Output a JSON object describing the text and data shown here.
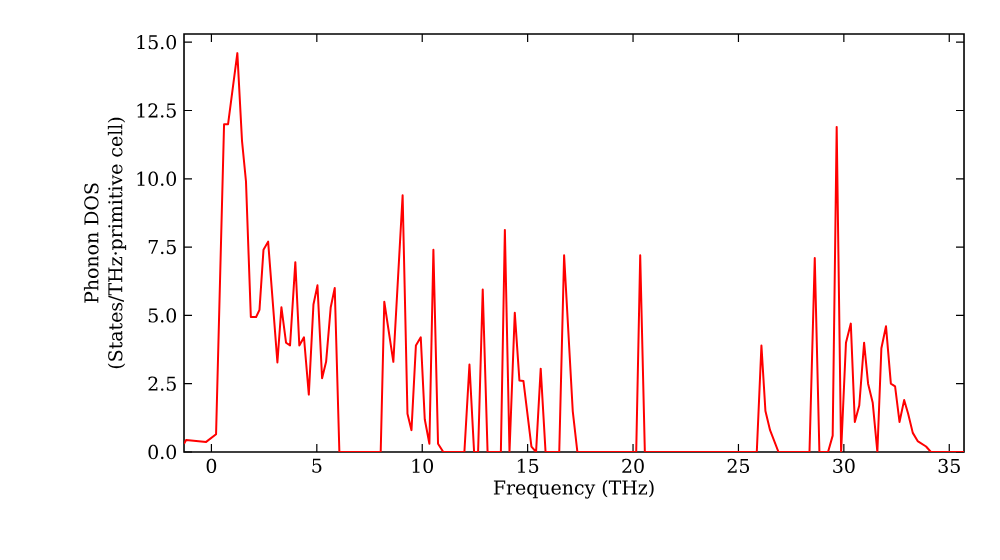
{
  "chart_data": {
    "type": "line",
    "xlabel": "Frequency (THz)",
    "ylabel": "Phonon DOS\n(States/THz·primitive cell)",
    "xlim": [
      -1.3,
      35.7
    ],
    "ylim": [
      0,
      15.3
    ],
    "xticks": [
      0,
      5,
      10,
      15,
      20,
      25,
      30,
      35
    ],
    "yticks": [
      {
        "value": 0,
        "label": "0.0"
      },
      {
        "value": 2.5,
        "label": "2.5"
      },
      {
        "value": 5,
        "label": "5.0"
      },
      {
        "value": 7.5,
        "label": "7.5"
      },
      {
        "value": 10,
        "label": "10.0"
      },
      {
        "value": 12.5,
        "label": "12.5"
      },
      {
        "value": 15,
        "label": "15.0"
      }
    ],
    "grid": false,
    "marker": "none",
    "line_style": "solid",
    "series": [
      {
        "color": "#ff0000",
        "x": [
          -1.3,
          -1.2,
          -0.25,
          0.22,
          0.6,
          0.79,
          1.23,
          1.45,
          1.64,
          1.87,
          2.12,
          2.28,
          2.47,
          2.69,
          3.13,
          3.32,
          3.54,
          3.73,
          3.98,
          4.17,
          4.39,
          4.62,
          4.84,
          5.03,
          5.25,
          5.44,
          5.66,
          5.85,
          6.07,
          8.03,
          8.2,
          8.63,
          9.07,
          9.3,
          9.49,
          9.7,
          9.93,
          10.12,
          10.34,
          10.53,
          10.75,
          11.0,
          12.0,
          12.24,
          12.46,
          12.65,
          12.87,
          13.1,
          13.73,
          13.92,
          14.14,
          14.39,
          14.61,
          14.8,
          15.18,
          15.4,
          15.62,
          15.85,
          16.5,
          16.73,
          17.14,
          17.36,
          20.15,
          20.34,
          20.56,
          25.87,
          26.09,
          26.28,
          26.5,
          26.9,
          28.37,
          28.62,
          28.84,
          29.25,
          29.47,
          29.66,
          29.87,
          30.1,
          30.33,
          30.52,
          30.73,
          30.96,
          31.15,
          31.37,
          31.59,
          31.78,
          32.0,
          32.23,
          32.43,
          32.64,
          32.86,
          33.05,
          33.27,
          33.5,
          33.9,
          34.13,
          35.7
        ],
        "values": [
          0.3,
          0.44,
          0.37,
          0.65,
          12.0,
          12.0,
          14.6,
          11.4,
          9.9,
          4.94,
          4.94,
          5.2,
          7.4,
          7.7,
          3.28,
          5.3,
          4.0,
          3.9,
          6.95,
          3.9,
          4.2,
          2.1,
          5.4,
          6.1,
          2.7,
          3.3,
          5.3,
          6.0,
          0,
          0,
          5.5,
          3.3,
          9.4,
          1.4,
          0.8,
          3.9,
          4.2,
          1.2,
          0.3,
          7.4,
          0.3,
          0,
          0,
          3.2,
          0,
          0,
          5.95,
          0,
          0,
          8.13,
          0,
          5.1,
          2.62,
          2.6,
          0.2,
          0,
          3.05,
          0,
          0,
          7.2,
          1.5,
          0,
          0,
          7.2,
          0,
          0,
          3.9,
          1.5,
          0.8,
          0,
          0,
          7.1,
          0,
          0,
          0.6,
          11.9,
          0,
          4.0,
          4.7,
          1.1,
          1.7,
          4.0,
          2.5,
          1.8,
          0,
          3.8,
          4.6,
          2.5,
          2.4,
          1.1,
          1.9,
          1.4,
          0.7,
          0.4,
          0.2,
          0,
          0
        ]
      }
    ]
  }
}
